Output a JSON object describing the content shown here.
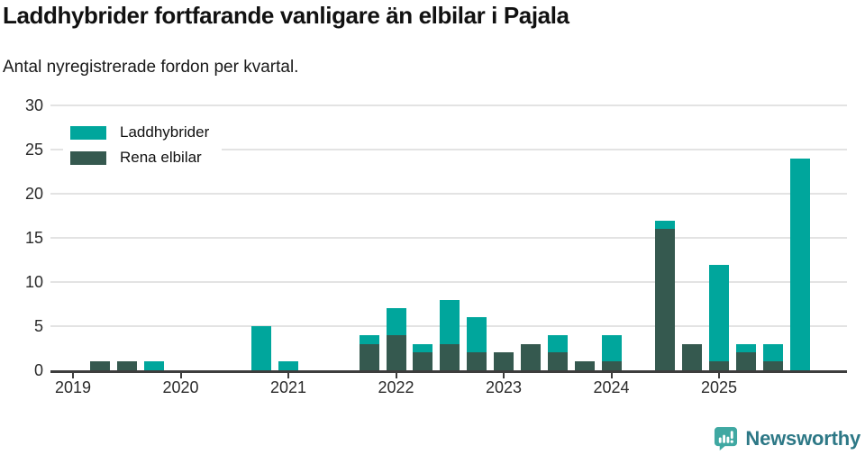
{
  "header": {
    "title": "Laddhybrider fortfarande vanligare än elbilar i Pajala",
    "subtitle": "Antal nyregistrerade fordon per kvartal."
  },
  "legend": {
    "items": [
      {
        "label": "Laddhybrider",
        "color": "#00a69c"
      },
      {
        "label": "Rena elbilar",
        "color": "#35594f"
      }
    ]
  },
  "footer": {
    "brand": "Newsworthy",
    "brand_icon": "newsworthy-speech-bubble-bar-chart-icon",
    "brand_icon_color": "#3fa8a2",
    "brand_text_color": "#2d7886"
  },
  "colors": {
    "laddhybrider": "#00a69c",
    "rena_elbilar": "#35594f",
    "grid": "#e3e3e3",
    "axis": "#3d3d3d",
    "tick_text": "#2b2b2b",
    "title_text": "#111111"
  },
  "chart_data": {
    "type": "bar",
    "stacked": true,
    "title": "Laddhybrider fortfarande vanligare än elbilar i Pajala",
    "subtitle": "Antal nyregistrerade fordon per kvartal.",
    "categories": [
      "2019-Q1",
      "2019-Q2",
      "2019-Q3",
      "2019-Q4",
      "2020-Q1",
      "2020-Q2",
      "2020-Q3",
      "2020-Q4",
      "2021-Q1",
      "2021-Q2",
      "2021-Q3",
      "2021-Q4",
      "2022-Q1",
      "2022-Q2",
      "2022-Q3",
      "2022-Q4",
      "2023-Q1",
      "2023-Q2",
      "2023-Q3",
      "2023-Q4",
      "2024-Q1",
      "2024-Q2",
      "2024-Q3",
      "2024-Q4",
      "2025-Q1",
      "2025-Q2",
      "2025-Q3",
      "2025-Q4"
    ],
    "series": [
      {
        "name": "Laddhybrider",
        "color": "#00a69c",
        "values": [
          0,
          0,
          0,
          1,
          0,
          0,
          0,
          5,
          1,
          0,
          0,
          1,
          3,
          1,
          5,
          4,
          0,
          0,
          2,
          0,
          3,
          0,
          1,
          0,
          11,
          1,
          2,
          24
        ]
      },
      {
        "name": "Rena elbilar",
        "color": "#35594f",
        "values": [
          0,
          1,
          1,
          0,
          0,
          0,
          0,
          0,
          0,
          0,
          0,
          3,
          4,
          2,
          3,
          2,
          2,
          3,
          2,
          1,
          1,
          0,
          16,
          3,
          1,
          2,
          1,
          0
        ]
      }
    ],
    "stack_bottom_to_top": [
      "Rena elbilar",
      "Laddhybrider"
    ],
    "x_tick_labels": [
      "2019",
      "2020",
      "2021",
      "2022",
      "2023",
      "2024",
      "2025"
    ],
    "yticks": [
      0,
      5,
      10,
      15,
      20,
      25,
      30
    ],
    "ylim": [
      0,
      30
    ],
    "grid": "horizontal",
    "legend_position": "top-left"
  }
}
